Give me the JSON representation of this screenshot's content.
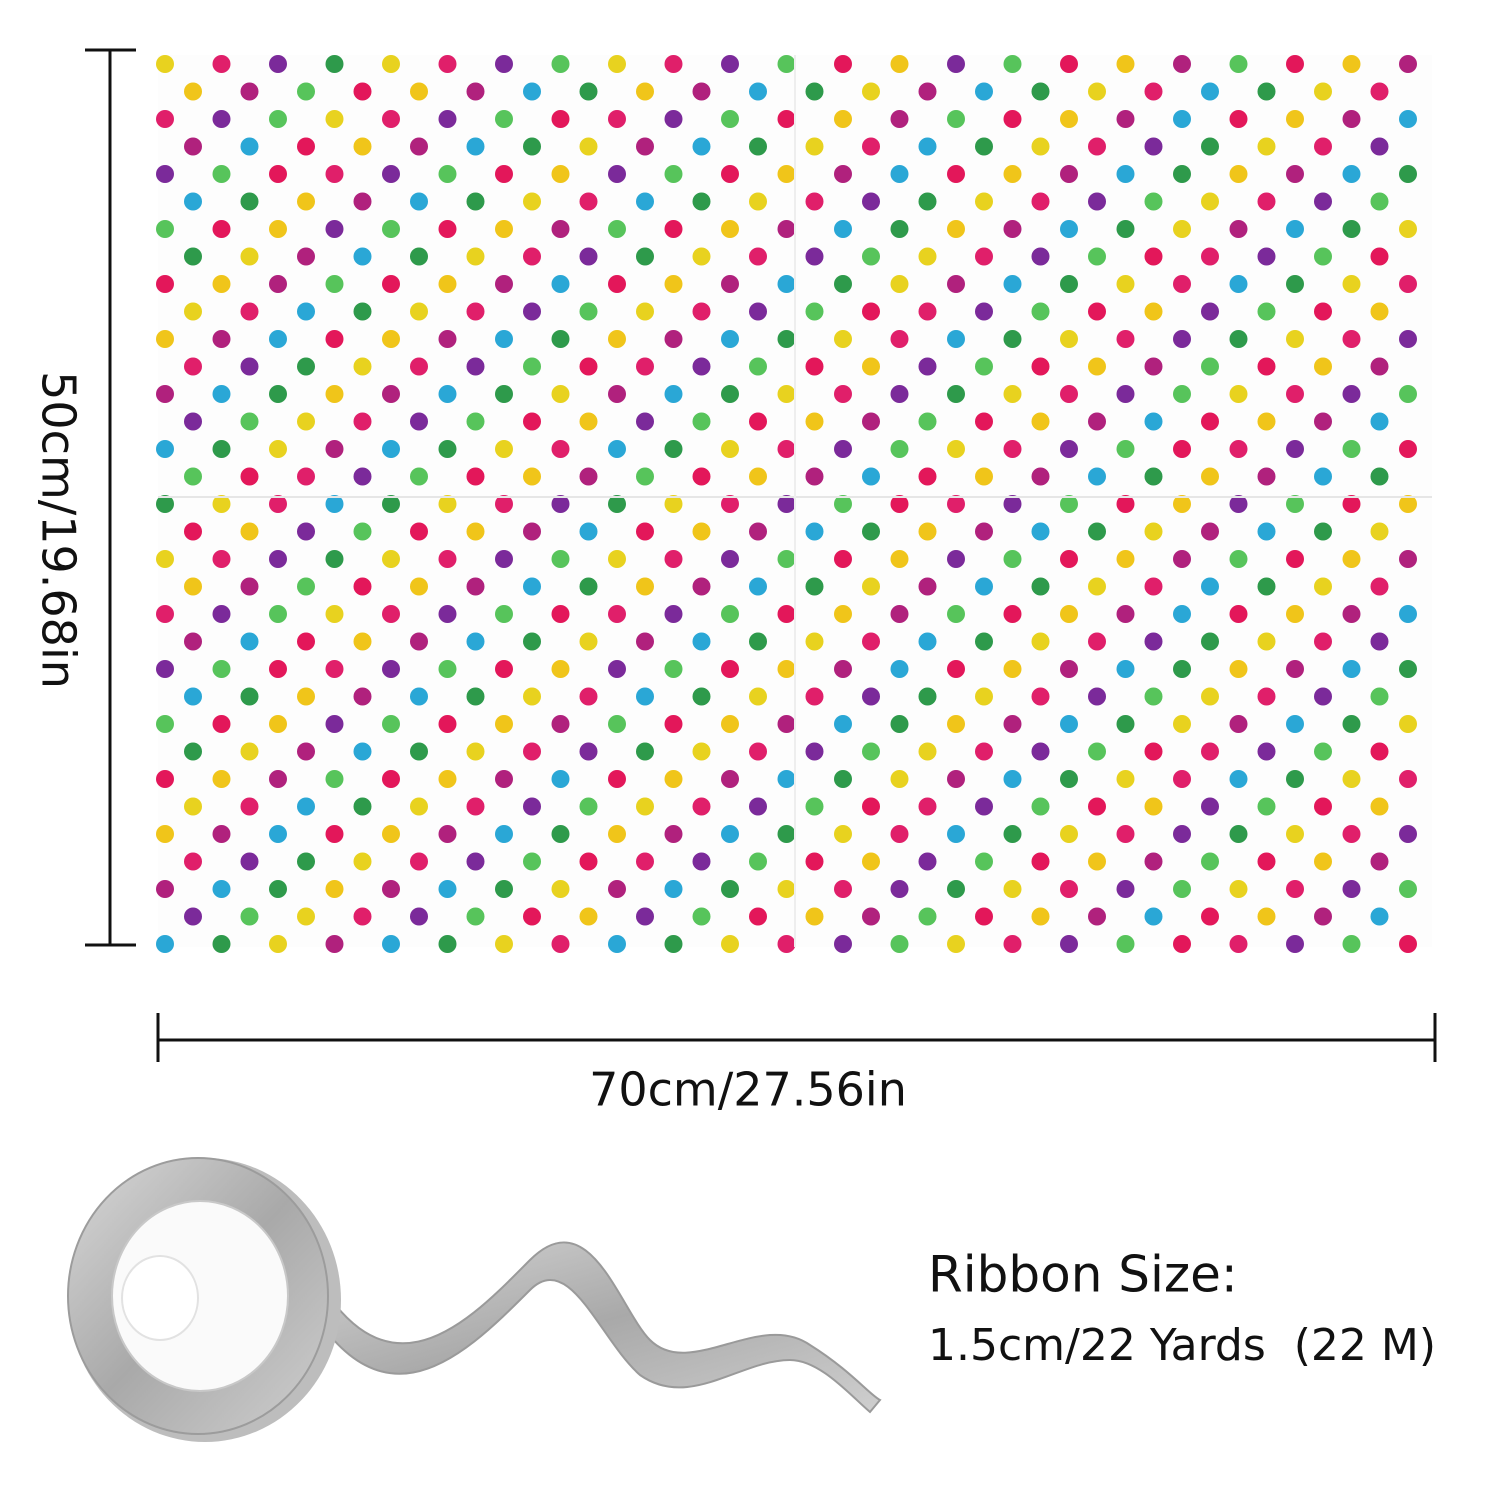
{
  "dimensions": {
    "height": "50cm/19.68in",
    "width": "70cm/27.56in"
  },
  "ribbon": {
    "title": "Ribbon Size:",
    "size": "1.5cm/22 Yards  (22 M)"
  }
}
